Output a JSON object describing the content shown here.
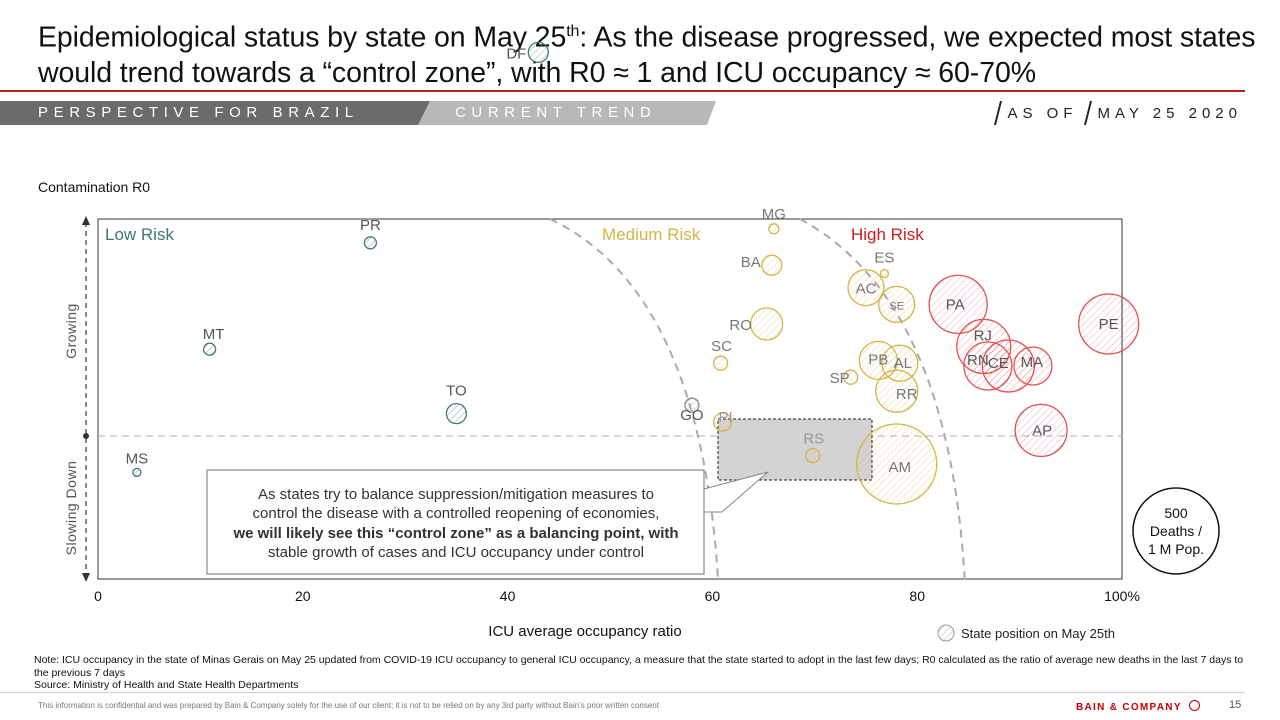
{
  "header": {
    "title_part1": "Epidemiological status by state on May 25",
    "title_sup": "th",
    "title_part2": ": As the disease progressed, we expected most states would trend towards a “control zone”, with R0 ≈ 1 and ICU occupancy ≈ 60-70%",
    "section_label": "PERSPECTIVE FOR BRAZIL",
    "tab_label": "CURRENT TREND",
    "as_of_label": "AS OF",
    "as_of_date": "MAY 25 2020"
  },
  "chart_data": {
    "type": "scatter",
    "title": "",
    "xlabel": "ICU average occupancy ratio",
    "ylabel": "Contamination R0",
    "y_arrow_labels": [
      "Growing",
      "Slowing Down"
    ],
    "xlim": [
      0,
      100
    ],
    "x_ticks": [
      "0",
      "20",
      "40",
      "60",
      "80",
      "100%"
    ],
    "grid": false,
    "zone_labels": [
      "Low Risk",
      "Medium Risk",
      "High Risk"
    ],
    "size_legend": "500 Deaths / 1 M Pop.",
    "point_legend": "State position on May 25th",
    "points": [
      {
        "state": "MS",
        "x": 3.8,
        "y": 0.87,
        "zone": "low"
      },
      {
        "state": "MT",
        "x": 10.9,
        "y": 1.31,
        "zone": "low"
      },
      {
        "state": "PR",
        "x": 26.6,
        "y": 1.69,
        "zone": "low"
      },
      {
        "state": "TO",
        "x": 35.0,
        "y": 1.08,
        "zone": "low"
      },
      {
        "state": "DF",
        "x": 43.0,
        "y": 2.37,
        "zone": "low"
      },
      {
        "state": "GO",
        "x": 58.0,
        "y": 1.11,
        "zone": "low"
      },
      {
        "state": "PI",
        "x": 61.0,
        "y": 1.05,
        "zone": "medium"
      },
      {
        "state": "SC",
        "x": 60.8,
        "y": 1.26,
        "zone": "medium"
      },
      {
        "state": "MG",
        "x": 66.0,
        "y": 1.74,
        "zone": "medium"
      },
      {
        "state": "BA",
        "x": 65.8,
        "y": 1.61,
        "zone": "medium"
      },
      {
        "state": "RO",
        "x": 65.3,
        "y": 1.4,
        "zone": "medium"
      },
      {
        "state": "RS",
        "x": 69.8,
        "y": 0.93,
        "zone": "medium"
      },
      {
        "state": "SP",
        "x": 73.5,
        "y": 1.21,
        "zone": "medium"
      },
      {
        "state": "AC",
        "x": 75.0,
        "y": 1.53,
        "zone": "medium"
      },
      {
        "state": "ES",
        "x": 76.8,
        "y": 1.58,
        "zone": "medium"
      },
      {
        "state": "SE",
        "x": 78.0,
        "y": 1.47,
        "zone": "medium"
      },
      {
        "state": "PB",
        "x": 76.2,
        "y": 1.27,
        "zone": "medium"
      },
      {
        "state": "AL",
        "x": 78.3,
        "y": 1.26,
        "zone": "medium"
      },
      {
        "state": "RR",
        "x": 78.0,
        "y": 1.16,
        "zone": "medium"
      },
      {
        "state": "AM",
        "x": 78.0,
        "y": 0.9,
        "zone": "medium"
      },
      {
        "state": "PA",
        "x": 84.0,
        "y": 1.47,
        "zone": "high"
      },
      {
        "state": "RJ",
        "x": 86.5,
        "y": 1.32,
        "zone": "high"
      },
      {
        "state": "RN",
        "x": 86.9,
        "y": 1.25,
        "zone": "high"
      },
      {
        "state": "CE",
        "x": 88.9,
        "y": 1.25,
        "zone": "high"
      },
      {
        "state": "MA",
        "x": 91.3,
        "y": 1.25,
        "zone": "high"
      },
      {
        "state": "AP",
        "x": 92.1,
        "y": 1.02,
        "zone": "high"
      },
      {
        "state": "PE",
        "x": 98.7,
        "y": 1.4,
        "zone": "high"
      }
    ]
  },
  "callout": {
    "line1": "As states try to balance suppression/mitigation measures to control the disease with a controlled reopening of economies,",
    "bold": "we will likely see this “control zone” as a balancing point, with",
    "line3": "stable growth of cases and ICU occupancy under control"
  },
  "colors": {
    "low": "#3f7a66",
    "medium": "#d4b445",
    "high": "#e05050",
    "neutral": "#8a8a8a",
    "accent": "#b41f1f"
  },
  "notes": {
    "note": "Note: ICU occupancy in the state of Minas Gerais on May 25 updated from COVID-19 ICU occupancy to general ICU occupancy,  a measure that the state started to adopt in the last few days; R0 calculated as the ratio of average new deaths in the last 7 days to the previous 7 days",
    "source": "Source: Ministry of Health and State Health Departments"
  },
  "footer": {
    "disclaimer": "This information is confidential and was prepared by Bain & Company solely for the use of our client; it is not to be relied on by any 3rd party without Bain's prior written consent",
    "brand": "BAIN & COMPANY",
    "page_number": "15"
  }
}
